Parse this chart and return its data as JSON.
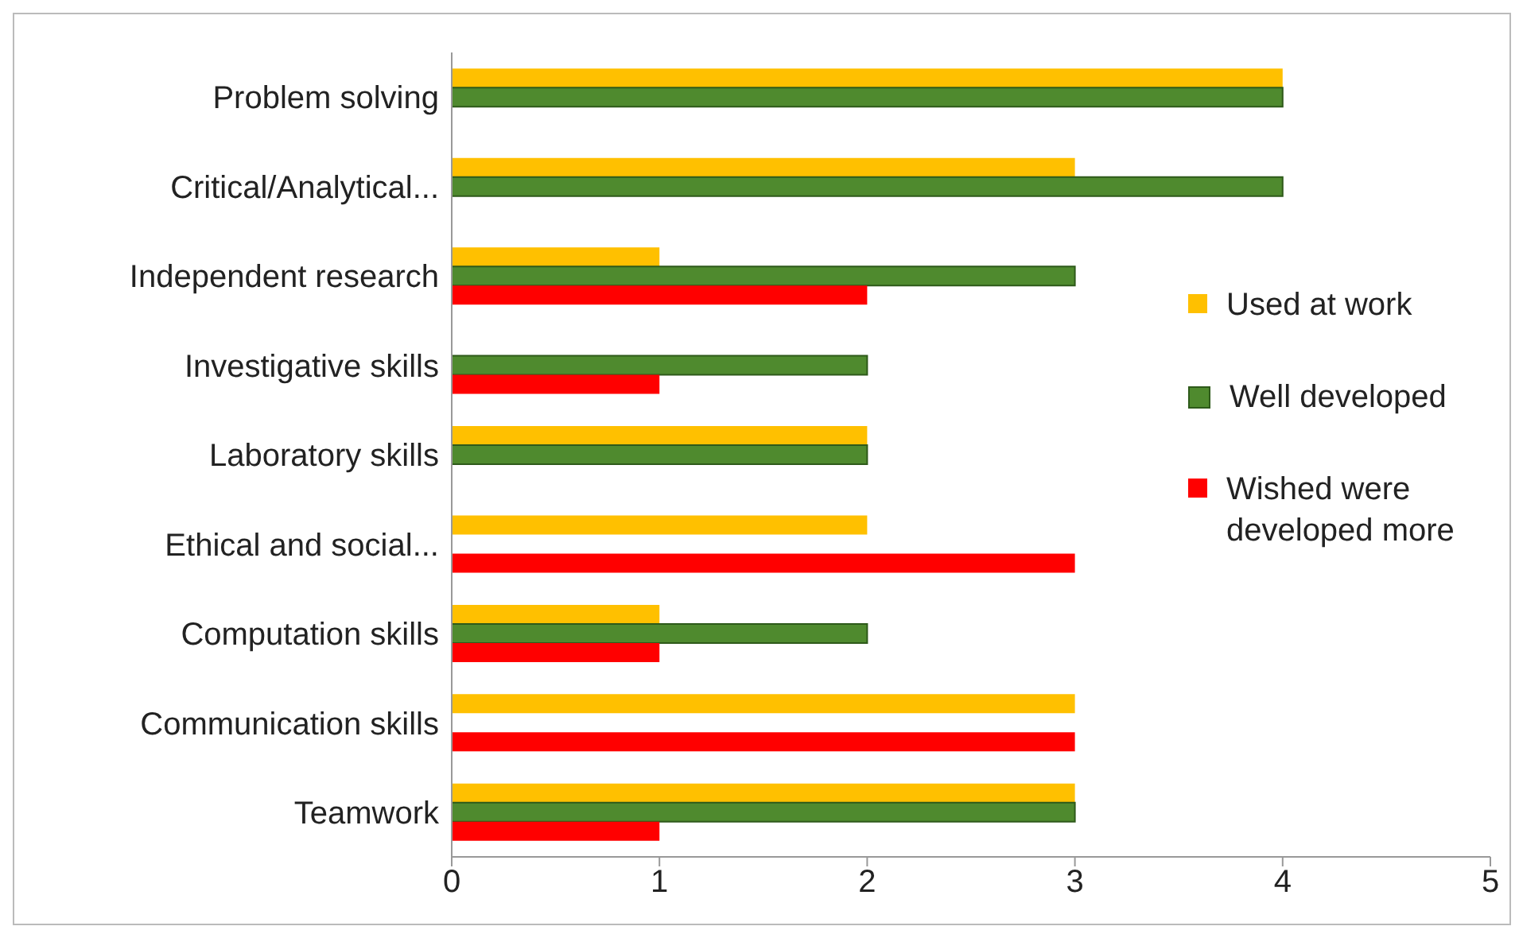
{
  "chart_data": {
    "type": "bar",
    "orientation": "horizontal",
    "categories": [
      "Problem solving",
      "Critical/Analytical...",
      "Independent research",
      "Investigative skills",
      "Laboratory skills",
      "Ethical and social...",
      "Computation skills",
      "Communication skills",
      "Teamwork"
    ],
    "series": [
      {
        "name": "Used at work",
        "color": "#ffc000",
        "values": [
          4,
          3,
          1,
          0,
          2,
          2,
          1,
          3,
          3
        ]
      },
      {
        "name": "Well developed",
        "color": "#4f8a2e",
        "values": [
          4,
          4,
          3,
          2,
          2,
          0,
          2,
          0,
          3
        ]
      },
      {
        "name": "Wished were developed more",
        "color": "#ff0000",
        "values": [
          0,
          0,
          2,
          1,
          0,
          3,
          1,
          3,
          1
        ]
      }
    ],
    "xlim": [
      0,
      5
    ],
    "xticks": [
      0,
      1,
      2,
      3,
      4,
      5
    ],
    "grid": false,
    "legend": "right"
  }
}
